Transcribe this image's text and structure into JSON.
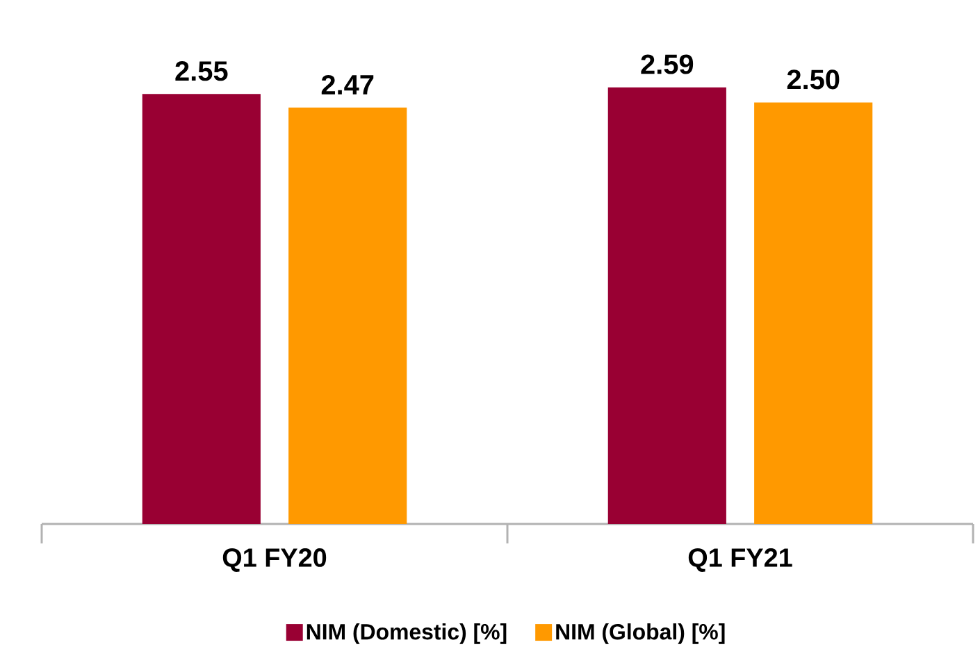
{
  "chart_data": {
    "type": "bar",
    "categories": [
      "Q1 FY20",
      "Q1 FY21"
    ],
    "series": [
      {
        "name": "NIM (Domestic) [%]",
        "color": "#990033",
        "values": [
          2.55,
          2.59
        ],
        "value_labels": [
          "2.55",
          "2.59"
        ]
      },
      {
        "name": "NIM (Global) [%]",
        "color": "#ff9900",
        "values": [
          2.47,
          2.5
        ],
        "value_labels": [
          "2.47",
          "2.50"
        ]
      }
    ],
    "legend": "bottom"
  }
}
